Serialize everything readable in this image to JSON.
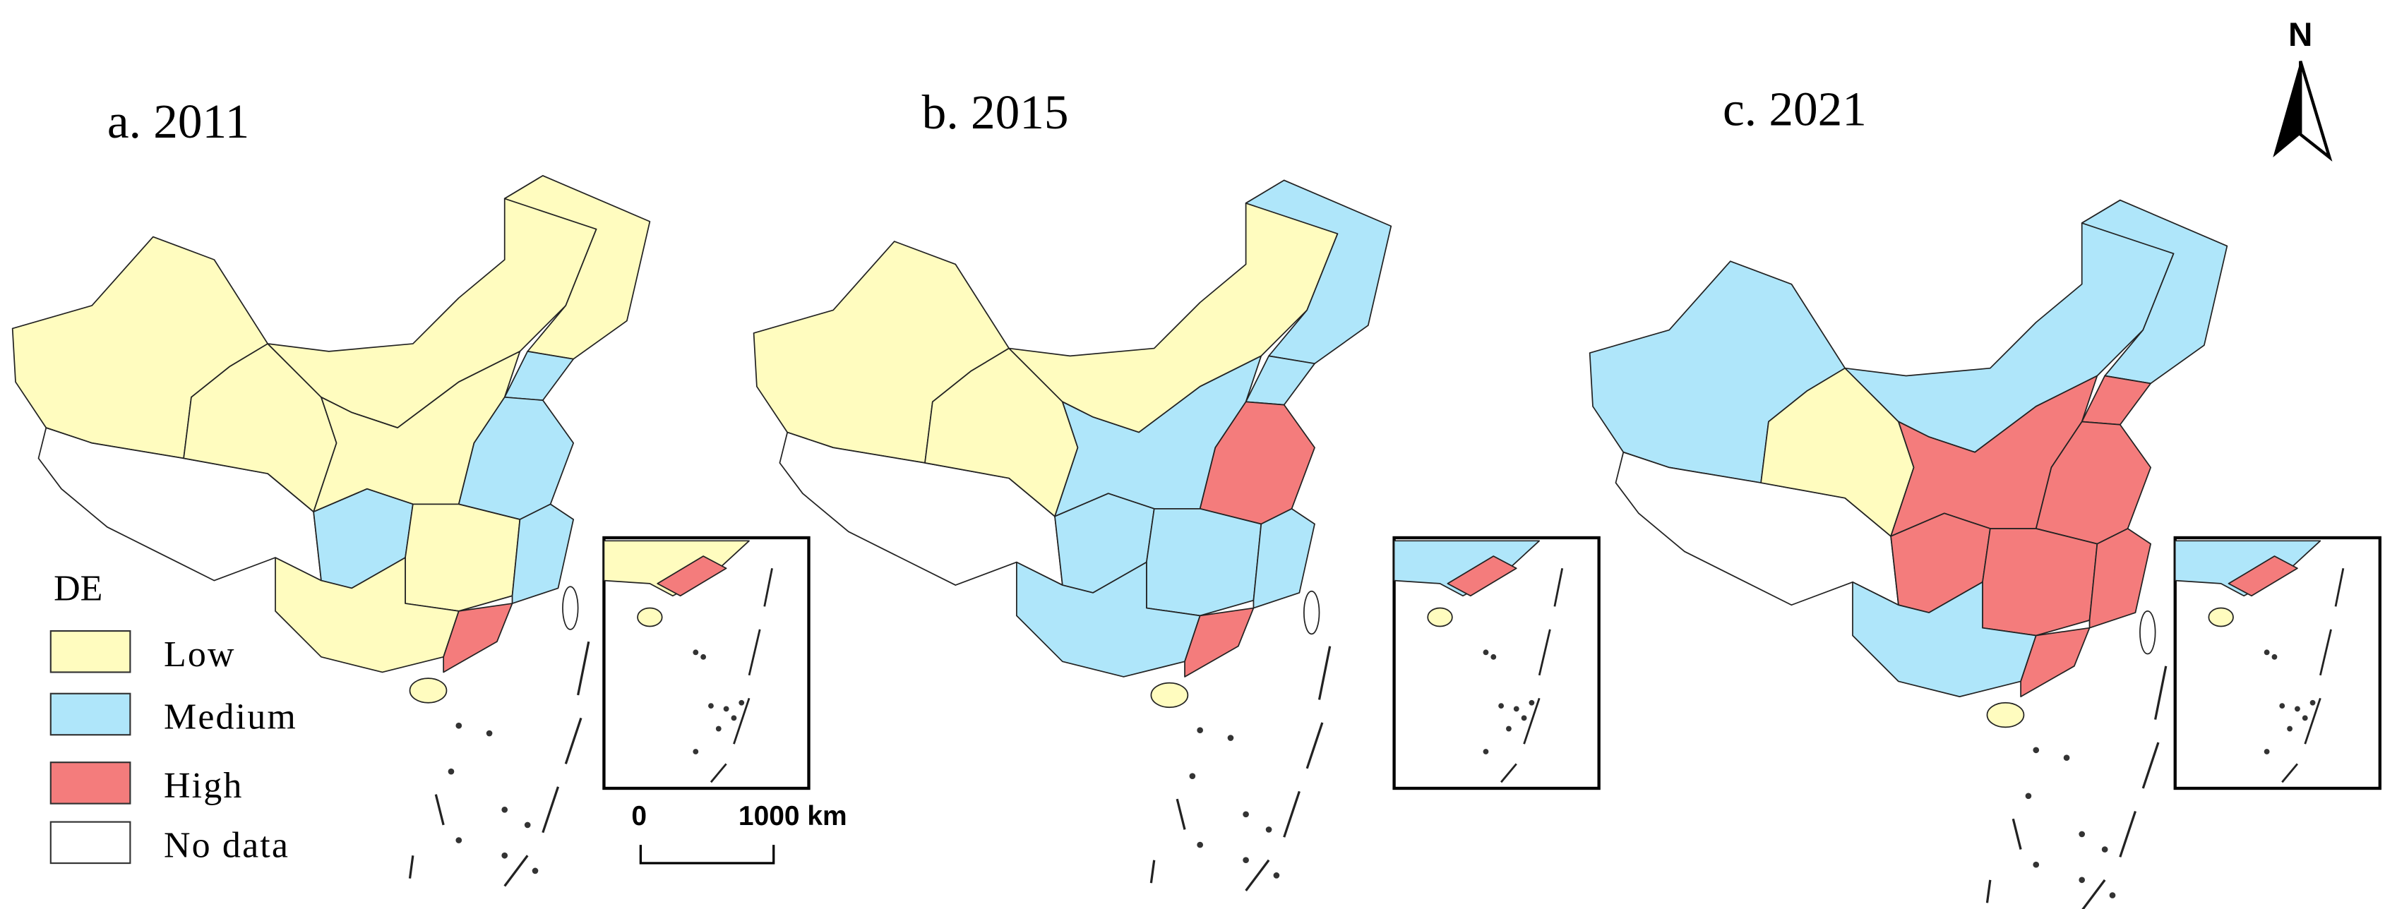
{
  "panels": [
    {
      "title": "a. 2011"
    },
    {
      "title": "b. 2015"
    },
    {
      "title": "c. 2021"
    }
  ],
  "north": "N",
  "legend": {
    "title": "DE",
    "items": [
      {
        "label": "Low",
        "color": "#fffcbf"
      },
      {
        "label": "Medium",
        "color": "#afe6fa"
      },
      {
        "label": "High",
        "color": "#f47c7c"
      },
      {
        "label": "No data",
        "color": "#ffffff"
      }
    ]
  },
  "scale_bar": {
    "start": "0",
    "end": "1000 km"
  }
}
